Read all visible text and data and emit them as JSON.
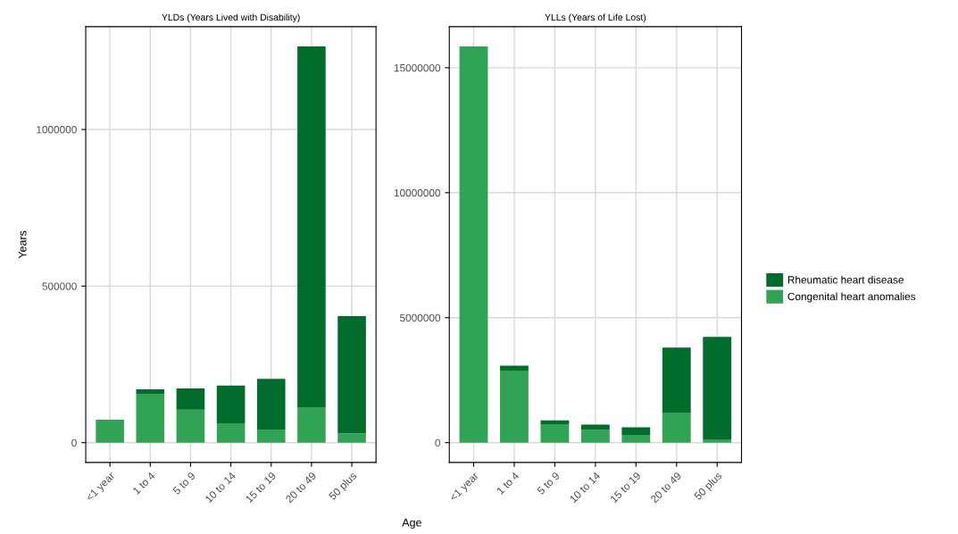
{
  "chart_data": [
    {
      "type": "bar",
      "title": "YLDs (Years Lived with Disability)",
      "xlabel": "Age",
      "ylabel": "Years",
      "stacked": true,
      "grid": true,
      "categories": [
        "<1 year",
        "1 to 4",
        "5 to 9",
        "10 to 14",
        "15 to 19",
        "20 to 49",
        "50 plus"
      ],
      "series": [
        {
          "color": "#31a354",
          "values": [
            73000,
            156000,
            105000,
            62000,
            42000,
            113000,
            30000
          ]
        },
        {
          "color": "#006d2c",
          "values": [
            null,
            14000,
            68000,
            120000,
            162000,
            1152000,
            374000
          ]
        }
      ],
      "ylim": [
        -63250,
        1328250
      ],
      "yticks": [
        0,
        500000,
        1000000
      ]
    },
    {
      "type": "bar",
      "title": "YLLs (Years of Life Lost)",
      "stacked": true,
      "grid": true,
      "legend": "right",
      "categories": [
        "<1 year",
        "1 to 4",
        "5 to 9",
        "10 to 14",
        "15 to 19",
        "20 to 49",
        "50 plus"
      ],
      "series": [
        {
          "name": "Congenital heart anomalies",
          "color": "#31a354",
          "values": [
            15850000,
            2880000,
            740000,
            520000,
            310000,
            1200000,
            130000
          ]
        },
        {
          "name": "Rheumatic heart disease",
          "color": "#006d2c",
          "values": [
            null,
            200000,
            150000,
            200000,
            300000,
            2600000,
            4100000
          ]
        }
      ],
      "ylim": [
        -792500,
        16642500
      ],
      "yticks": [
        0,
        5000000,
        10000000,
        15000000
      ]
    }
  ]
}
